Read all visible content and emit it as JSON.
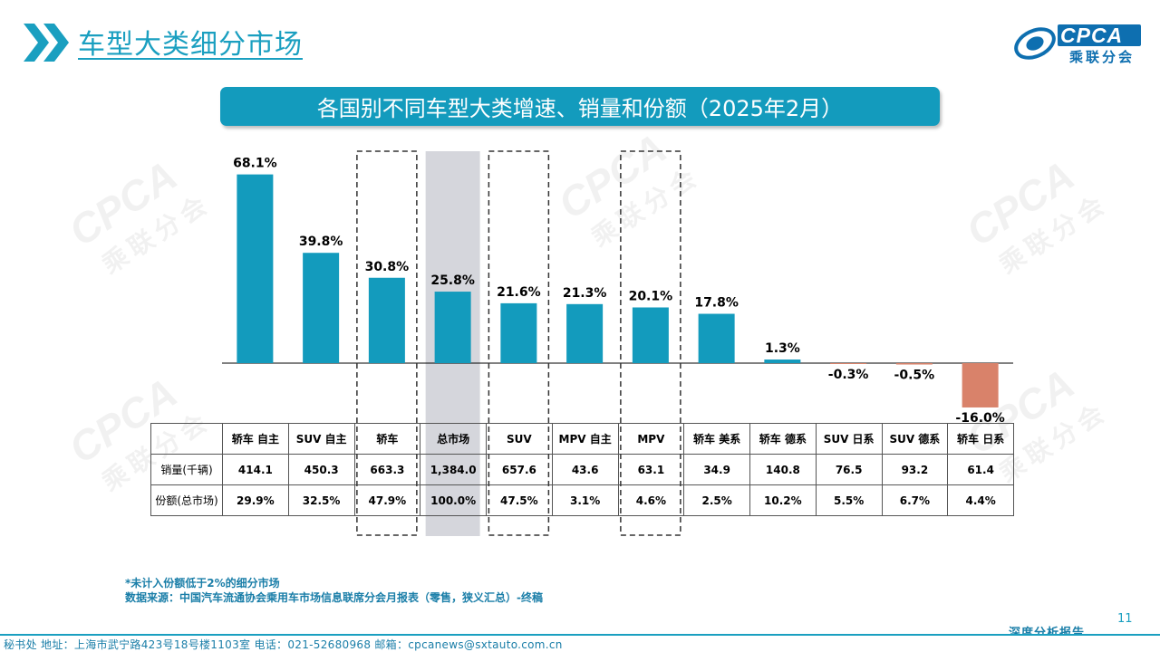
{
  "header": {
    "title": "车型大类细分市场",
    "logo_text": "CPCA",
    "logo_sub": "乘联分会"
  },
  "banner": {
    "text": "各国别不同车型大类增速、销量和份额（2025年2月）"
  },
  "watermark": {
    "text": "CPCA",
    "sub": "乘联分会"
  },
  "chart_data": {
    "type": "bar",
    "categories": [
      "轿车 自主",
      "SUV 自主",
      "轿车",
      "总市场",
      "SUV",
      "MPV 自主",
      "MPV",
      "轿车 美系",
      "轿车 德系",
      "SUV 日系",
      "SUV 德系",
      "轿车 日系"
    ],
    "values": [
      68.1,
      39.8,
      30.8,
      25.8,
      21.6,
      21.3,
      20.1,
      17.8,
      1.3,
      -0.3,
      -0.5,
      -16.0
    ],
    "value_labels": [
      "68.1%",
      "39.8%",
      "30.8%",
      "25.8%",
      "21.6%",
      "21.3%",
      "20.1%",
      "17.8%",
      "1.3%",
      "-0.3%",
      "-0.5%",
      "-16.0%"
    ],
    "colors": {
      "positive": "#139bbd",
      "negative": "#d9826a",
      "highlight_bg": "#d5d6dc"
    },
    "highlighted_column": 3,
    "dashed_columns": [
      2,
      4,
      6
    ],
    "ylim": [
      -20,
      70
    ],
    "grid": false,
    "title": "",
    "xlabel": "",
    "ylabel": ""
  },
  "table": {
    "headers": [
      "轿车 自主",
      "SUV 自主",
      "轿车",
      "总市场",
      "SUV",
      "MPV 自主",
      "MPV",
      "轿车 美系",
      "轿车 德系",
      "SUV 日系",
      "SUV 德系",
      "轿车 日系"
    ],
    "rows": [
      {
        "label": "销量(千辆)",
        "values": [
          "414.1",
          "450.3",
          "663.3",
          "1,384.0",
          "657.6",
          "43.6",
          "63.1",
          "34.9",
          "140.8",
          "76.5",
          "93.2",
          "61.4"
        ]
      },
      {
        "label": "份额(总市场)",
        "values": [
          "29.9%",
          "32.5%",
          "47.9%",
          "100.0%",
          "47.5%",
          "3.1%",
          "4.6%",
          "2.5%",
          "10.2%",
          "5.5%",
          "6.7%",
          "4.4%"
        ]
      }
    ]
  },
  "notes": {
    "line1": "*未计入份额低于2%的细分市场",
    "line2": "数据来源：中国汽车流通协会乘用车市场信息联席分会月报表（零售，狭义汇总）-终稿"
  },
  "page_number": "11",
  "footer": {
    "text": "秘书处   地址：上海市武宁路423号18号楼1103室  电话：021-52680968   邮箱：cpcanews@sxtauto.com.cn",
    "right": "深度分析报告"
  }
}
